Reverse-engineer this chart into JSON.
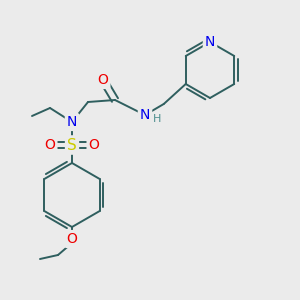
{
  "bg_color": "#ebebeb",
  "atom_colors": {
    "N": "#0000ee",
    "O": "#ee0000",
    "S": "#cccc00",
    "C": "#2f5f5f",
    "H": "#4f8f8f",
    "default": "#2f5f5f"
  },
  "bond_color": "#2f5f5f",
  "bond_width": 1.4,
  "fig_width": 3.0,
  "fig_height": 3.0,
  "dpi": 100
}
